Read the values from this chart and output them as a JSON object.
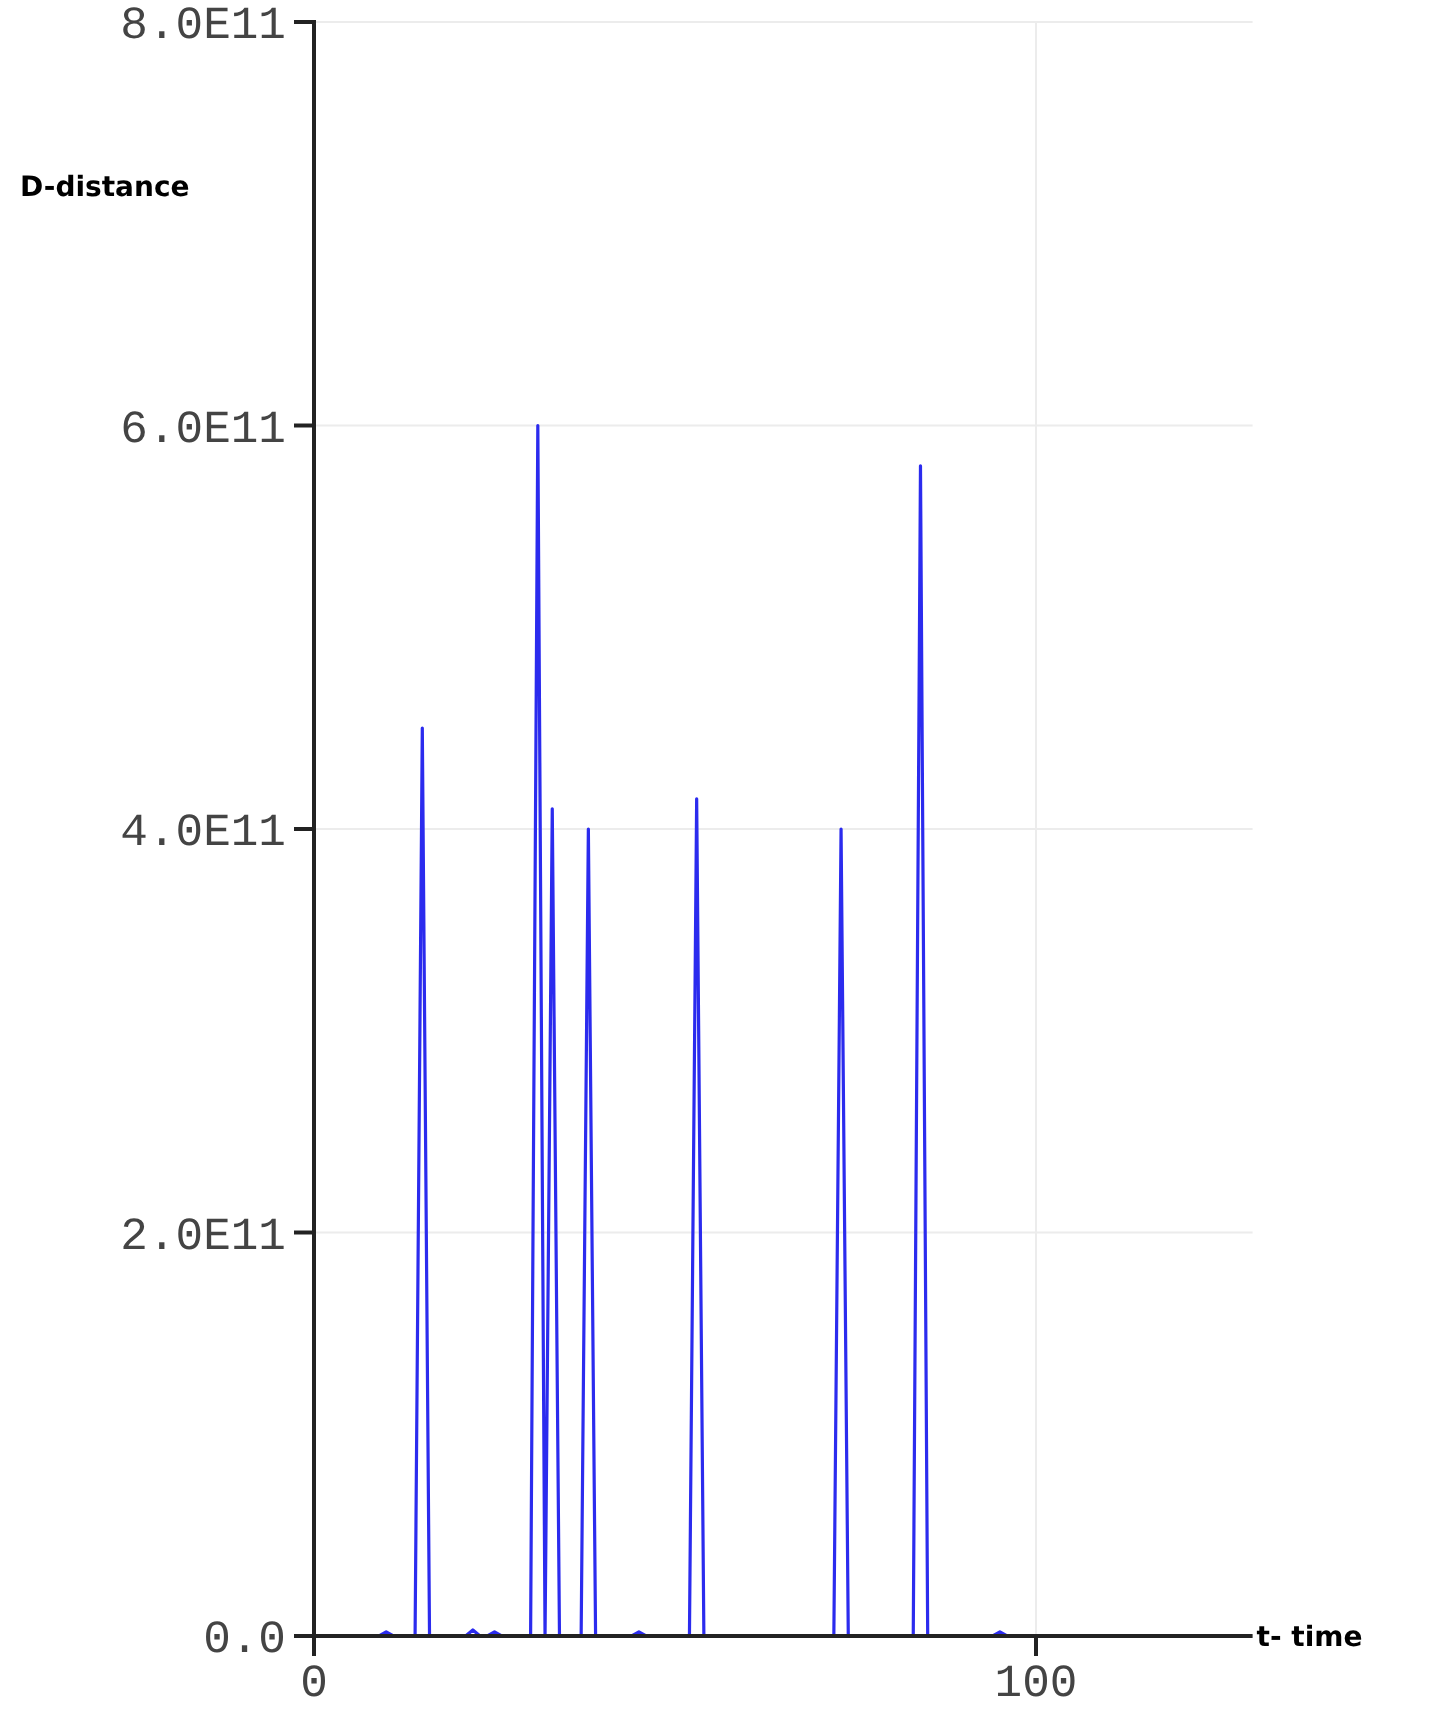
{
  "chart_data": {
    "type": "line",
    "xlabel": "t- time",
    "ylabel": "D-distance",
    "x": [
      0,
      9,
      10,
      11,
      14,
      15,
      16,
      21,
      22,
      23,
      24,
      25,
      26,
      30,
      31,
      32,
      33,
      34,
      37,
      38,
      39,
      44,
      45,
      46,
      52,
      53,
      54,
      72,
      73,
      74,
      83,
      84,
      85,
      94,
      95,
      96,
      120
    ],
    "series": [
      {
        "color": "#2b2bee",
        "values": [
          0,
          0,
          2000000000,
          0,
          0,
          450000000000,
          0,
          0,
          3000000000,
          0,
          0,
          2000000000,
          0,
          0,
          600000000000,
          0,
          410000000000,
          0,
          0,
          400000000000,
          0,
          0,
          2000000000,
          0,
          0,
          415000000000,
          0,
          0,
          400000000000,
          0,
          0,
          580000000000,
          0,
          0,
          2000000000,
          0,
          0
        ]
      }
    ],
    "xlim": [
      0,
      130
    ],
    "xticks": [
      0,
      100
    ],
    "ylim": [
      0,
      800000000000
    ],
    "yticks": [
      {
        "value": 0,
        "label": "0.0"
      },
      {
        "value": 200000000000,
        "label": "2.0E11"
      },
      {
        "value": 400000000000,
        "label": "4.0E11"
      },
      {
        "value": 600000000000,
        "label": "6.0E11"
      },
      {
        "value": 800000000000,
        "label": "8.0E11"
      }
    ],
    "grid": true,
    "marker": "none",
    "line_style": "solid"
  }
}
